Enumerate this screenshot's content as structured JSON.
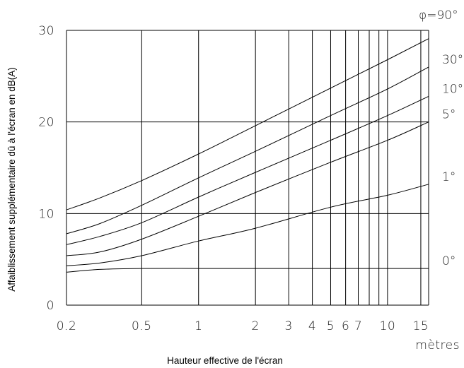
{
  "chart_data": {
    "type": "line",
    "title": "",
    "xlabel": "Hauteur effective de l'écran",
    "ylabel": "Affaiblissement supplémentaire dû à l'écran en dB(A)",
    "x_unit": "mètres",
    "x_scale": "log",
    "xlim": [
      0.2,
      16.5
    ],
    "ylim": [
      0,
      30
    ],
    "x_ticks": [
      {
        "value": 0.2,
        "label": "0.2"
      },
      {
        "value": 0.5,
        "label": "0.5"
      },
      {
        "value": 1,
        "label": "1"
      },
      {
        "value": 2,
        "label": "2"
      },
      {
        "value": 3,
        "label": "3"
      },
      {
        "value": 4,
        "label": "4"
      },
      {
        "value": 5,
        "label": "5"
      },
      {
        "value": 6,
        "label": "6"
      },
      {
        "value": 7,
        "label": "7"
      },
      {
        "value": 10,
        "label": "10"
      },
      {
        "value": 15,
        "label": "15"
      }
    ],
    "x_gridlines": [
      0.2,
      0.5,
      1,
      2,
      3,
      4,
      5,
      6,
      7,
      8,
      9,
      10,
      15,
      16.5
    ],
    "y_ticks": [
      {
        "value": 0,
        "label": "0"
      },
      {
        "value": 10,
        "label": "10"
      },
      {
        "value": 20,
        "label": "20"
      },
      {
        "value": 30,
        "label": "30"
      }
    ],
    "y_gridlines": [
      0,
      10,
      20,
      30
    ],
    "grid": true,
    "series_header": "φ=90°",
    "series": [
      {
        "name": "0°",
        "x": [
          0.2,
          0.3,
          0.5,
          1,
          2,
          5,
          16.5
        ],
        "values": [
          3.6,
          3.9,
          4.0,
          4.0,
          4.0,
          4.0,
          4.0
        ]
      },
      {
        "name": "1°",
        "x": [
          0.2,
          0.3,
          0.5,
          1,
          2,
          5,
          10,
          16.5
        ],
        "values": [
          4.3,
          4.6,
          5.4,
          7.0,
          8.4,
          10.7,
          12.0,
          13.2
        ]
      },
      {
        "name": "5°",
        "x": [
          0.2,
          0.3,
          0.5,
          1,
          2,
          5,
          10,
          16.5
        ],
        "values": [
          5.4,
          5.8,
          7.2,
          9.7,
          12.3,
          15.6,
          18.0,
          20.0
        ]
      },
      {
        "name": "10°",
        "x": [
          0.2,
          0.3,
          0.5,
          1,
          2,
          5,
          10,
          16.5
        ],
        "values": [
          6.6,
          7.5,
          9.0,
          11.8,
          14.5,
          18.0,
          20.7,
          22.8
        ]
      },
      {
        "name": "30°",
        "x": [
          0.2,
          0.3,
          0.5,
          1,
          2,
          5,
          10,
          16.5
        ],
        "values": [
          7.8,
          8.9,
          10.9,
          13.9,
          16.8,
          20.7,
          23.6,
          26.0
        ]
      },
      {
        "name": "90°",
        "x": [
          0.2,
          0.3,
          0.5,
          1,
          2,
          5,
          10,
          16.5
        ],
        "values": [
          10.4,
          11.7,
          13.6,
          16.5,
          19.6,
          23.7,
          26.8,
          29.1
        ]
      }
    ]
  }
}
